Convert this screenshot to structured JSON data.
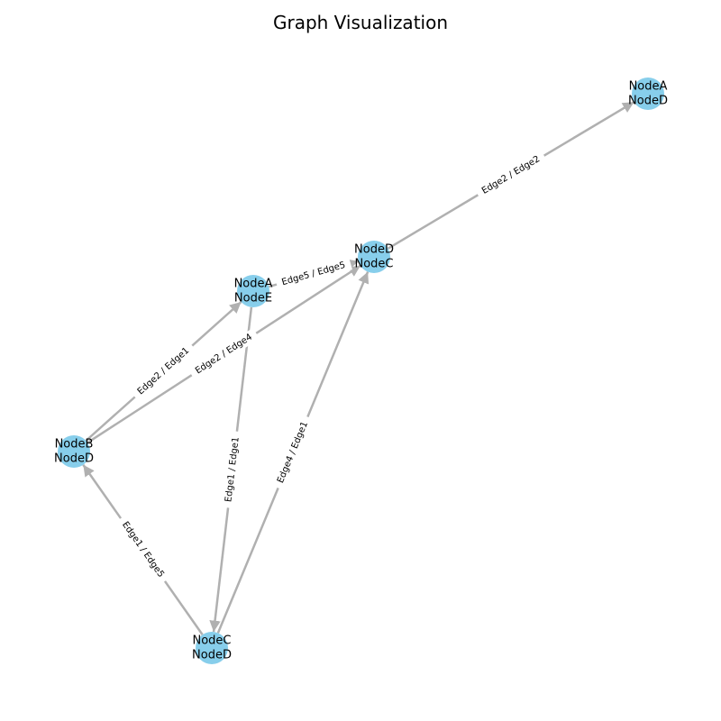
{
  "title": "Graph Visualization",
  "colors": {
    "node_fill": "#87ceeb",
    "edge_stroke": "#b0b0b0",
    "text": "#000000",
    "background": "#ffffff"
  },
  "nodes": [
    {
      "id": "n1",
      "lines": [
        "NodeA",
        "NodeD"
      ]
    },
    {
      "id": "n2",
      "lines": [
        "NodeD",
        "NodeC"
      ]
    },
    {
      "id": "n3",
      "lines": [
        "NodeA",
        "NodeE"
      ]
    },
    {
      "id": "n4",
      "lines": [
        "NodeB",
        "NodeD"
      ]
    },
    {
      "id": "n5",
      "lines": [
        "NodeC",
        "NodeD"
      ]
    }
  ],
  "edges": [
    {
      "id": "e1",
      "source": "n2",
      "target": "n1",
      "label": "Edge2 / Edge2"
    },
    {
      "id": "e2",
      "source": "n3",
      "target": "n2",
      "label": "Edge5 / Edge5"
    },
    {
      "id": "e3",
      "source": "n4",
      "target": "n3",
      "label": "Edge2 / Edge1"
    },
    {
      "id": "e4",
      "source": "n4",
      "target": "n2",
      "label": "Edge2 / Edge4"
    },
    {
      "id": "e5",
      "source": "n3",
      "target": "n5",
      "label": "Edge1 / Edge1"
    },
    {
      "id": "e6",
      "source": "n5",
      "target": "n2",
      "label": "Edge4 / Edge1"
    },
    {
      "id": "e7",
      "source": "n5",
      "target": "n4",
      "label": "Edge1 / Edge5"
    }
  ]
}
